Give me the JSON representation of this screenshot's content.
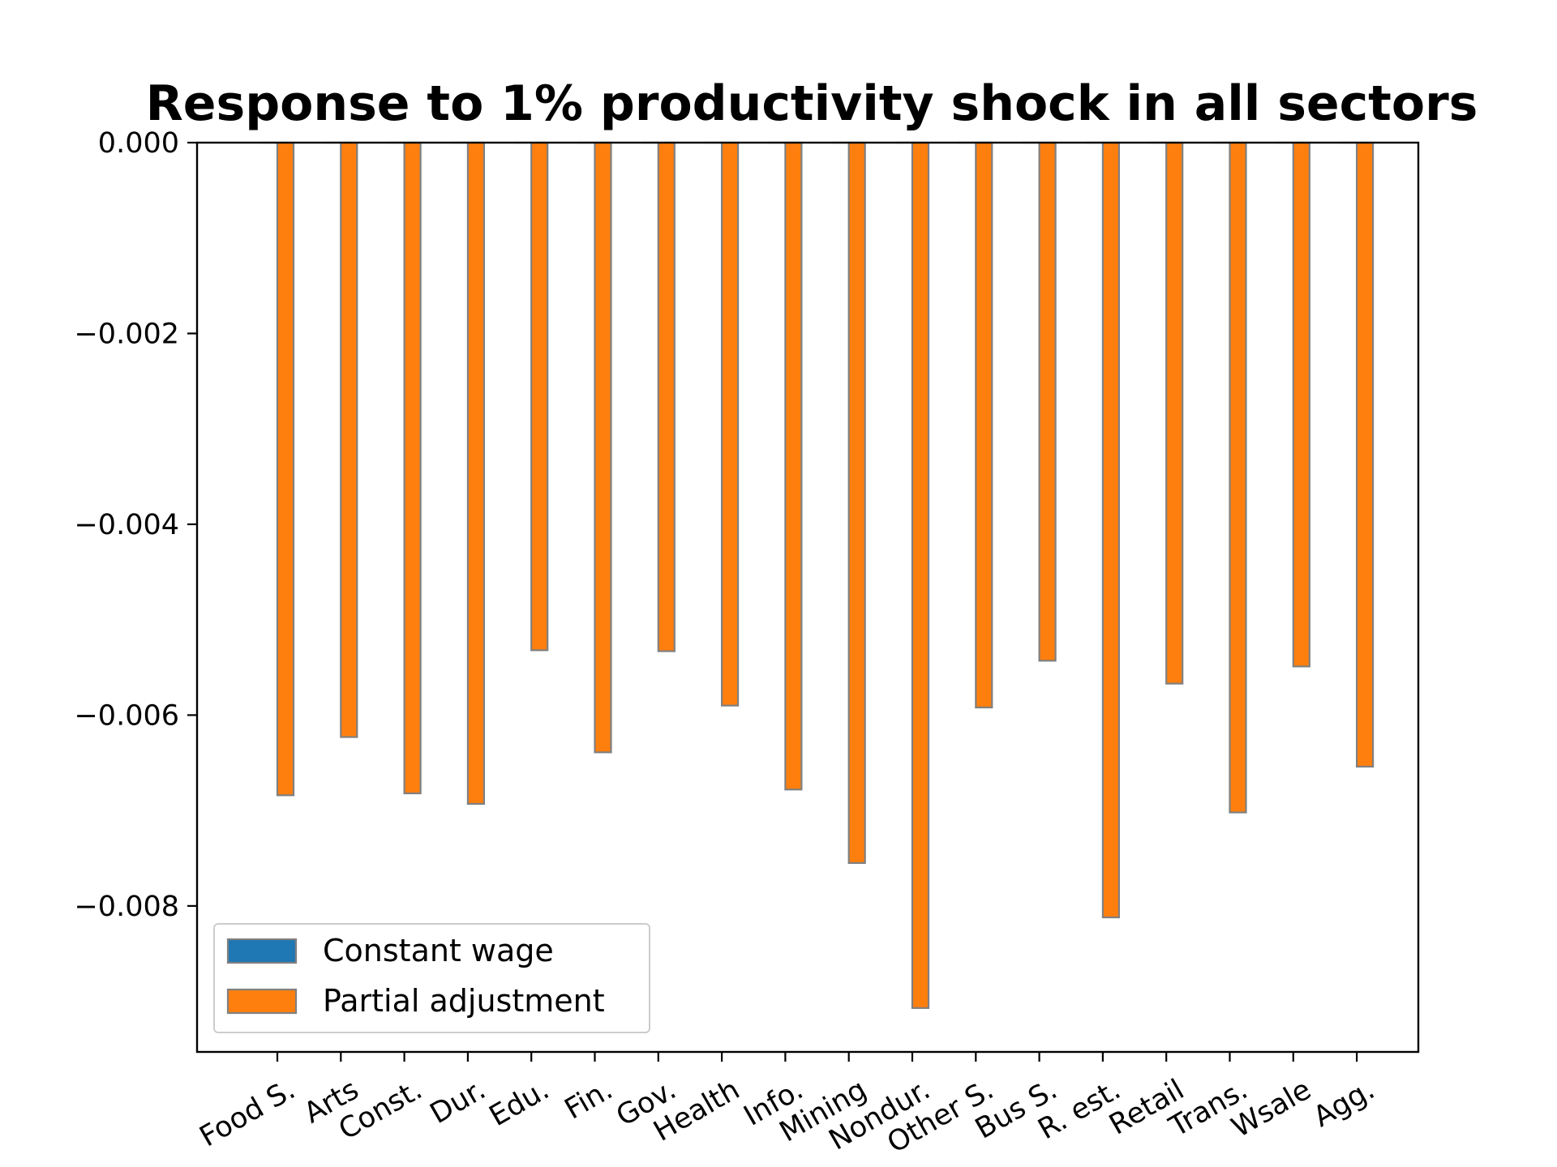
{
  "chart_data": {
    "type": "bar",
    "title": "Response to 1% productivity shock in all sectors",
    "xlabel": "",
    "ylabel": "",
    "categories": [
      "Food S.",
      "Arts",
      "Const.",
      "Dur.",
      "Edu.",
      "Fin.",
      "Gov.",
      "Health",
      "Info.",
      "Mining",
      "Nondur.",
      "Other S.",
      "Bus S.",
      "R. est.",
      "Retail",
      "Trans.",
      "Wsale",
      "Agg."
    ],
    "series": [
      {
        "name": "Constant wage",
        "color": "#1f77b4",
        "values": [
          0,
          0,
          0,
          0,
          0,
          0,
          0,
          0,
          0,
          0,
          0,
          0,
          0,
          0,
          0,
          0,
          0,
          0
        ]
      },
      {
        "name": "Partial adjustment",
        "color": "#ff7f0e",
        "values": [
          -0.00684,
          -0.00623,
          -0.00682,
          -0.00693,
          -0.00532,
          -0.00639,
          -0.00533,
          -0.0059,
          -0.00678,
          -0.00755,
          -0.00907,
          -0.00592,
          -0.00543,
          -0.00812,
          -0.00567,
          -0.00702,
          -0.00549,
          -0.00654
        ]
      }
    ],
    "yticks": [
      0.0,
      -0.002,
      -0.004,
      -0.006,
      -0.008
    ],
    "ytick_labels": [
      "0.000",
      "−0.002",
      "−0.004",
      "−0.006",
      "−0.008"
    ],
    "ylim": [
      -0.00953,
      0.0
    ],
    "bar_edge_color": "#808080",
    "grid": false,
    "legend_position": "lower-left"
  }
}
